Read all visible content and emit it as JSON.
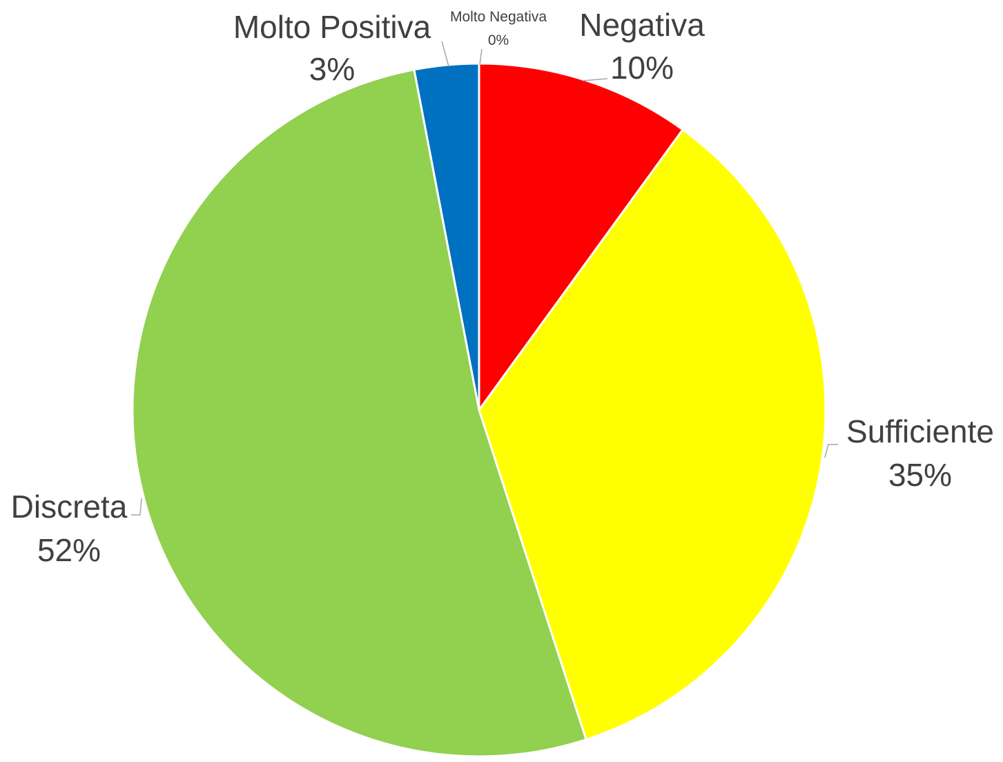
{
  "chart_data": {
    "type": "pie",
    "title": "",
    "slices": [
      {
        "label": "Molto Negativa",
        "value": 0,
        "value_label": "0%",
        "color": "#C00000"
      },
      {
        "label": "Negativa",
        "value": 10,
        "value_label": "10%",
        "color": "#FF0000"
      },
      {
        "label": "Sufficiente",
        "value": 35,
        "value_label": "35%",
        "color": "#FFFF00"
      },
      {
        "label": "Discreta",
        "value": 52,
        "value_label": "52%",
        "color": "#92D050"
      },
      {
        "label": "Molto Positiva",
        "value": 3,
        "value_label": "3%",
        "color": "#0070C0"
      }
    ],
    "start_angle_deg": 0,
    "direction": "clockwise",
    "slice_border_color": "#FFFFFF",
    "label_text_color": "#404040",
    "leader_line_color": "#A6A6A6"
  }
}
